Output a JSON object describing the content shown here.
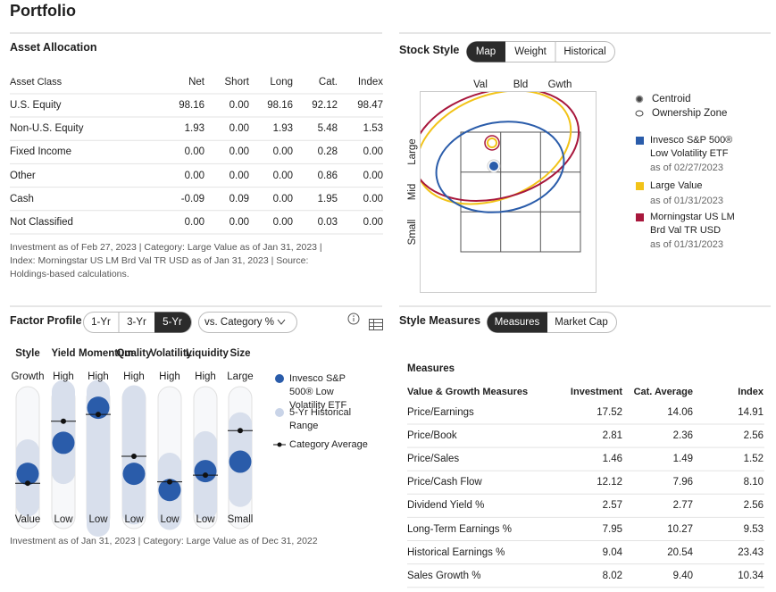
{
  "header": {
    "title": "Portfolio"
  },
  "asset_allocation": {
    "title": "Asset Allocation",
    "columns": [
      "Asset Class",
      "Net",
      "Short",
      "Long",
      "Cat.",
      "Index"
    ],
    "rows": [
      [
        "U.S. Equity",
        "98.16",
        "0.00",
        "98.16",
        "92.12",
        "98.47"
      ],
      [
        "Non-U.S. Equity",
        "1.93",
        "0.00",
        "1.93",
        "5.48",
        "1.53"
      ],
      [
        "Fixed Income",
        "0.00",
        "0.00",
        "0.00",
        "0.28",
        "0.00"
      ],
      [
        "Other",
        "0.00",
        "0.00",
        "0.00",
        "0.86",
        "0.00"
      ],
      [
        "Cash",
        "-0.09",
        "0.09",
        "0.00",
        "1.95",
        "0.00"
      ],
      [
        "Not Classified",
        "0.00",
        "0.00",
        "0.00",
        "0.03",
        "0.00"
      ]
    ],
    "note": "Investment as of Feb 27, 2023 | Category: Large Value as of Jan 31, 2023 | Index: Morningstar US LM Brd Val TR USD as of Jan 31, 2023 | Source: Holdings-based calculations."
  },
  "stock_style": {
    "title": "Stock Style",
    "tabs": [
      "Map",
      "Weight",
      "Historical"
    ],
    "columns": [
      "Val",
      "Bld",
      "Gwth"
    ],
    "rows": [
      "Large",
      "Mid",
      "Small"
    ],
    "markers": [
      "Centroid",
      "Ownership Zone"
    ],
    "legend": [
      {
        "name": "Invesco S&P 500® Low Volatility ETF",
        "date": "as of 02/27/2023",
        "color": "#2a5caa"
      },
      {
        "name": "Large Value",
        "date": "as of 01/31/2023",
        "color": "#f2c318"
      },
      {
        "name": "Morningstar US LM Brd Val TR USD",
        "date": "as of 01/31/2023",
        "color": "#a8173c"
      }
    ]
  },
  "factor_profile": {
    "title": "Factor Profile",
    "tabs": [
      "1-Yr",
      "3-Yr",
      "5-Yr"
    ],
    "compare": "vs. Category %",
    "factors": [
      {
        "name": "Style",
        "high": "Growth",
        "low": "Value",
        "fund": 38,
        "range": [
          15,
          55
        ],
        "category": 31
      },
      {
        "name": "Yield",
        "high": "High",
        "low": "Low",
        "fund": 61,
        "range": [
          39,
          99
        ],
        "category": 77
      },
      {
        "name": "Momentum",
        "high": "High",
        "low": "Low",
        "fund": 87,
        "range": [
          0,
          99
        ],
        "category": 82
      },
      {
        "name": "Quality",
        "high": "High",
        "low": "Low",
        "fund": 38,
        "range": [
          9,
          95
        ],
        "category": 51
      },
      {
        "name": "Volatility",
        "high": "High",
        "low": "Low",
        "fund": 26,
        "range": [
          5,
          45
        ],
        "category": 32
      },
      {
        "name": "Liquidity",
        "high": "High",
        "low": "Low",
        "fund": 40,
        "range": [
          12,
          61
        ],
        "category": 37
      },
      {
        "name": "Size",
        "high": "Large",
        "low": "Small",
        "fund": 47,
        "range": [
          22,
          75
        ],
        "category": 70
      }
    ],
    "legend": [
      "Invesco S&P 500® Low Volatility ETF",
      "5-Yr Historical Range",
      "Category Average"
    ],
    "note": "Investment as of Jan 31, 2023 | Category: Large Value as of Dec 31, 2022"
  },
  "style_measures": {
    "title": "Style Measures",
    "tabs": [
      "Measures",
      "Market Cap"
    ],
    "subtitle": "Measures",
    "columns": [
      "Value & Growth Measures",
      "Investment",
      "Cat. Average",
      "Index"
    ],
    "rows": [
      [
        "Price/Earnings",
        "17.52",
        "14.06",
        "14.91"
      ],
      [
        "Price/Book",
        "2.81",
        "2.36",
        "2.56"
      ],
      [
        "Price/Sales",
        "1.46",
        "1.49",
        "1.52"
      ],
      [
        "Price/Cash Flow",
        "12.12",
        "7.96",
        "8.10"
      ],
      [
        "Dividend Yield %",
        "2.57",
        "2.77",
        "2.56"
      ],
      [
        "Long-Term Earnings %",
        "7.95",
        "10.27",
        "9.53"
      ],
      [
        "Historical Earnings %",
        "9.04",
        "20.54",
        "23.43"
      ],
      [
        "Sales Growth %",
        "8.02",
        "9.40",
        "10.34"
      ]
    ]
  }
}
